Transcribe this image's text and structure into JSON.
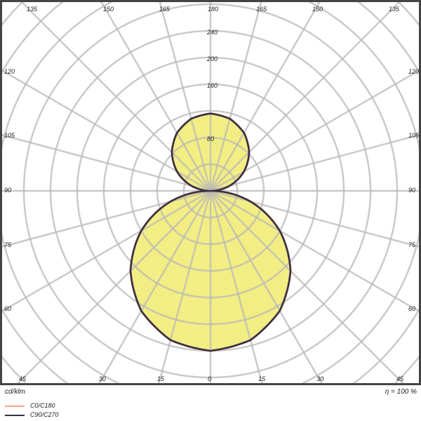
{
  "chart_data": {
    "type": "polar",
    "unit_label": "cd/klm",
    "efficiency_label": "η = 100 %",
    "radial_tick_labels": [
      "80",
      "160",
      "200",
      "240"
    ],
    "radial_ticks": [
      80,
      160,
      200,
      240
    ],
    "ring_step": 40,
    "angle_labels": [
      {
        "angle": 135,
        "text": "135"
      },
      {
        "angle": 150,
        "text": "150"
      },
      {
        "angle": 165,
        "text": "165"
      },
      {
        "angle": 180,
        "text": "180"
      },
      {
        "angle": -165,
        "text": "165"
      },
      {
        "angle": -150,
        "text": "150"
      },
      {
        "angle": -135,
        "text": "135"
      },
      {
        "angle": 120,
        "text": "120"
      },
      {
        "angle": 105,
        "text": "105"
      },
      {
        "angle": 90,
        "text": "90"
      },
      {
        "angle": 75,
        "text": "75"
      },
      {
        "angle": 60,
        "text": "60"
      },
      {
        "angle": -120,
        "text": "120"
      },
      {
        "angle": -105,
        "text": "105"
      },
      {
        "angle": -90,
        "text": "90"
      },
      {
        "angle": -75,
        "text": "75"
      },
      {
        "angle": -60,
        "text": "60"
      },
      {
        "angle": 45,
        "text": "45"
      },
      {
        "angle": 30,
        "text": "30"
      },
      {
        "angle": 15,
        "text": "15"
      },
      {
        "angle": 0,
        "text": "0"
      },
      {
        "angle": -15,
        "text": "15"
      },
      {
        "angle": -30,
        "text": "30"
      },
      {
        "angle": -45,
        "text": "45"
      }
    ],
    "series": [
      {
        "name": "C0/C180",
        "color": "#f4a582",
        "angles": [
          0,
          15,
          30,
          45,
          60,
          75,
          90,
          105,
          120,
          135,
          150,
          165,
          180
        ],
        "values": [
          240,
          231.8,
          207.8,
          169.7,
          120,
          62.1,
          0,
          30,
          58,
          82,
          100.5,
          112,
          116
        ]
      },
      {
        "name": "C90/C270",
        "color": "#333344",
        "angles": [
          0,
          15,
          30,
          45,
          60,
          75,
          90,
          105,
          120,
          135,
          150,
          165,
          180
        ],
        "values": [
          240,
          231.8,
          207.8,
          169.7,
          120,
          62.1,
          0,
          30,
          58,
          82,
          100.5,
          112,
          116
        ]
      }
    ],
    "fill_color": "#f2ee84"
  }
}
